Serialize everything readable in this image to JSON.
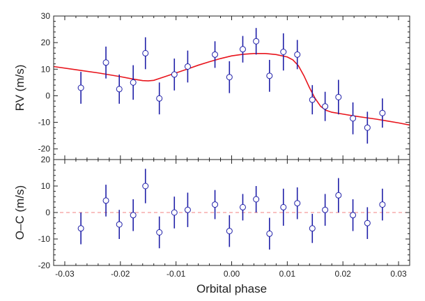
{
  "chart_data": [
    {
      "type": "scatter",
      "panel": "rv",
      "title": "",
      "xlabel": "",
      "ylabel": "RV (m/s)",
      "xlim": [
        -0.032,
        0.032
      ],
      "ylim": [
        -24,
        30
      ],
      "yticks": [
        -20,
        -10,
        0,
        10,
        20,
        30
      ],
      "xticks": [
        -0.03,
        -0.02,
        -0.01,
        0.0,
        0.01,
        0.02,
        0.03
      ],
      "grid": false,
      "colors": {
        "points": "#1f1fa8",
        "model": "#e8141c",
        "frame": "#222222"
      },
      "series": [
        {
          "kind": "points_with_errorbars",
          "x": [
            -0.0271,
            -0.0226,
            -0.0202,
            -0.0177,
            -0.0155,
            -0.013,
            -0.0103,
            -0.0079,
            -0.003,
            -0.0004,
            0.002,
            0.0044,
            0.0068,
            0.0093,
            0.0118,
            0.0145,
            0.0168,
            0.0192,
            0.0218,
            0.0244,
            0.0271
          ],
          "y": [
            3,
            12.5,
            2.5,
            5,
            16,
            -1,
            8,
            11,
            15.5,
            7,
            17.5,
            20.5,
            7.5,
            16.5,
            15.5,
            -1.5,
            -4,
            -0.5,
            -8.5,
            -12,
            -6.5
          ],
          "yerr": [
            6,
            6,
            5.5,
            6.5,
            6,
            6,
            6,
            6,
            5,
            6,
            5,
            5,
            6,
            7,
            5.5,
            5.5,
            5.5,
            6.5,
            6,
            6,
            5.5
          ]
        },
        {
          "kind": "model_curve",
          "x": [
            -0.032,
            -0.028,
            -0.024,
            -0.02,
            -0.018,
            -0.016,
            -0.015,
            -0.014,
            -0.012,
            -0.01,
            -0.008,
            -0.006,
            -0.004,
            -0.002,
            0.0,
            0.002,
            0.004,
            0.006,
            0.008,
            0.01,
            0.011,
            0.012,
            0.013,
            0.014,
            0.015,
            0.016,
            0.017,
            0.018,
            0.02,
            0.022,
            0.024,
            0.026,
            0.028,
            0.03,
            0.032
          ],
          "y": [
            11,
            9.8,
            8.6,
            7.2,
            6.4,
            5.7,
            5.6,
            5.8,
            7.2,
            8.6,
            10,
            11.5,
            12.8,
            14,
            15,
            15.6,
            15.9,
            15.9,
            15.5,
            14.6,
            13.5,
            11.3,
            7.5,
            3,
            -1,
            -4,
            -5.5,
            -6.2,
            -6.9,
            -7.6,
            -8.2,
            -8.8,
            -9.5,
            -10.2,
            -11
          ]
        }
      ]
    },
    {
      "type": "scatter",
      "panel": "residuals",
      "title": "",
      "xlabel": "Orbital phase",
      "ylabel": "O–C (m/s)",
      "xlim": [
        -0.032,
        0.032
      ],
      "ylim": [
        -20,
        20
      ],
      "yticks": [
        -20,
        -10,
        0,
        10,
        20
      ],
      "xticks": [
        -0.03,
        -0.02,
        -0.01,
        0.0,
        0.01,
        0.02,
        0.03
      ],
      "xtick_labels": [
        "-0.03",
        "-0.02",
        "-0.01",
        "0.00",
        "0.01",
        "0.02",
        "0.03"
      ],
      "grid": false,
      "reference_line": {
        "y": 0,
        "style": "dashed",
        "color": "#f08080"
      },
      "series": [
        {
          "kind": "points_with_errorbars",
          "x": [
            -0.0271,
            -0.0226,
            -0.0202,
            -0.0177,
            -0.0155,
            -0.013,
            -0.0103,
            -0.0079,
            -0.003,
            -0.0004,
            0.002,
            0.0044,
            0.0068,
            0.0093,
            0.0118,
            0.0145,
            0.0168,
            0.0192,
            0.0218,
            0.0244,
            0.0271
          ],
          "y": [
            -6,
            4.5,
            -4.5,
            -1,
            10,
            -7.5,
            0,
            1,
            3,
            -7,
            2,
            5,
            -8,
            2,
            3.5,
            -6,
            1,
            6.5,
            -1,
            -4,
            3
          ],
          "yerr": [
            6,
            6,
            5.5,
            6,
            6.5,
            6,
            6,
            6.5,
            5.5,
            6,
            5,
            5,
            6,
            7,
            6,
            5.5,
            6,
            6.5,
            6,
            6,
            6
          ]
        }
      ]
    }
  ]
}
